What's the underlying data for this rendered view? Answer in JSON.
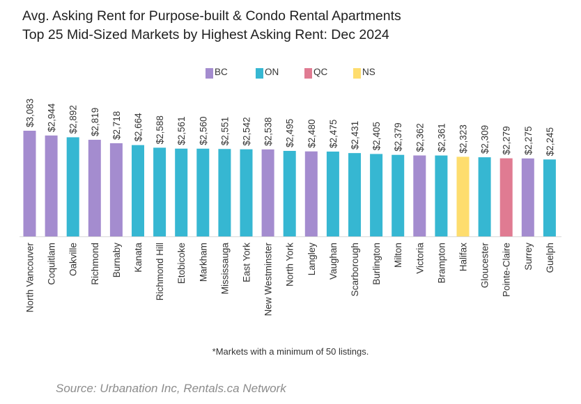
{
  "title_line1": "Avg. Asking Rent for Purpose-built & Condo Rental Apartments",
  "title_line2": "Top 25 Mid-Sized Markets by Highest Asking Rent: Dec 2024",
  "note": "*Markets with a minimum of 50 listings.",
  "source": "Source: Urbanation Inc, Rentals.ca Network",
  "legend": [
    {
      "label": "BC",
      "color": "#a48ccf"
    },
    {
      "label": "ON",
      "color": "#36b7d2"
    },
    {
      "label": "QC",
      "color": "#e07b92"
    },
    {
      "label": "NS",
      "color": "#fedd6e"
    }
  ],
  "chart_data": {
    "type": "bar",
    "title": "Avg. Asking Rent for Purpose-built & Condo Rental Apartments — Top 25 Mid-Sized Markets by Highest Asking Rent: Dec 2024",
    "categories": [
      "North Vancouver",
      "Coquitlam",
      "Oakville",
      "Richmond",
      "Burnaby",
      "Kanata",
      "Richmond Hill",
      "Etobicoke",
      "Markham",
      "Mississauga",
      "East York",
      "New Westminster",
      "North York",
      "Langley",
      "Vaughan",
      "Scarborough",
      "Burlington",
      "Milton",
      "Victoria",
      "Brampton",
      "Halifax",
      "Gloucester",
      "Pointe-Claire",
      "Surrey",
      "Guelph"
    ],
    "values": [
      3083,
      2944,
      2892,
      2819,
      2718,
      2664,
      2588,
      2561,
      2560,
      2551,
      2542,
      2538,
      2495,
      2480,
      2475,
      2431,
      2405,
      2379,
      2362,
      2361,
      2323,
      2309,
      2279,
      2275,
      2245
    ],
    "value_labels": [
      "$3,083",
      "$2,944",
      "$2,892",
      "$2,819",
      "$2,718",
      "$2,664",
      "$2,588",
      "$2,561",
      "$2,560",
      "$2,551",
      "$2,542",
      "$2,538",
      "$2,495",
      "$2,480",
      "$2,475",
      "$2,431",
      "$2,405",
      "$2,379",
      "$2,362",
      "$2,361",
      "$2,323",
      "$2,309",
      "$2,279",
      "$2,275",
      "$2,245"
    ],
    "province": [
      "BC",
      "BC",
      "ON",
      "BC",
      "BC",
      "ON",
      "ON",
      "ON",
      "ON",
      "ON",
      "ON",
      "BC",
      "ON",
      "BC",
      "ON",
      "ON",
      "ON",
      "ON",
      "BC",
      "ON",
      "NS",
      "ON",
      "QC",
      "BC",
      "ON"
    ],
    "legend_position": "top",
    "grid": false,
    "ylim": [
      0,
      3083
    ]
  }
}
